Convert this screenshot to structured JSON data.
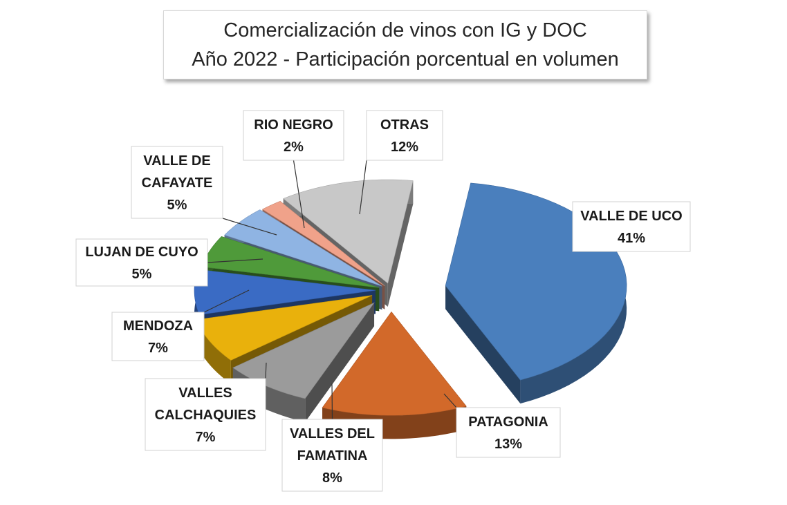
{
  "chart_data": {
    "type": "pie",
    "title_lines": [
      "Comercialización de vinos con IG y DOC",
      "Año 2022 - Participación porcentual en volumen"
    ],
    "slices": [
      {
        "label_lines": [
          "VALLE DE UCO"
        ],
        "value": 41,
        "display": "41%",
        "color": "#4a7fbd"
      },
      {
        "label_lines": [
          "PATAGONIA"
        ],
        "value": 13,
        "display": "13%",
        "color": "#d2692a"
      },
      {
        "label_lines": [
          "VALLES DEL",
          "FAMATINA"
        ],
        "value": 8,
        "display": "8%",
        "color": "#9b9b9b"
      },
      {
        "label_lines": [
          "VALLES",
          "CALCHAQUIES"
        ],
        "value": 7,
        "display": "7%",
        "color": "#e9b10c"
      },
      {
        "label_lines": [
          "MENDOZA"
        ],
        "value": 7,
        "display": "7%",
        "color": "#3a6bc4"
      },
      {
        "label_lines": [
          "LUJAN DE CUYO"
        ],
        "value": 5,
        "display": "5%",
        "color": "#4f9a3a"
      },
      {
        "label_lines": [
          "VALLE DE",
          "CAFAYATE"
        ],
        "value": 5,
        "display": "5%",
        "color": "#8fb4e3"
      },
      {
        "label_lines": [
          "RIO NEGRO"
        ],
        "value": 2,
        "display": "2%",
        "color": "#f0a28a"
      },
      {
        "label_lines": [
          "OTRAS"
        ],
        "value": 12,
        "display": "12%",
        "color": "#c8c8c8"
      }
    ],
    "style": "3D exploded pie"
  }
}
